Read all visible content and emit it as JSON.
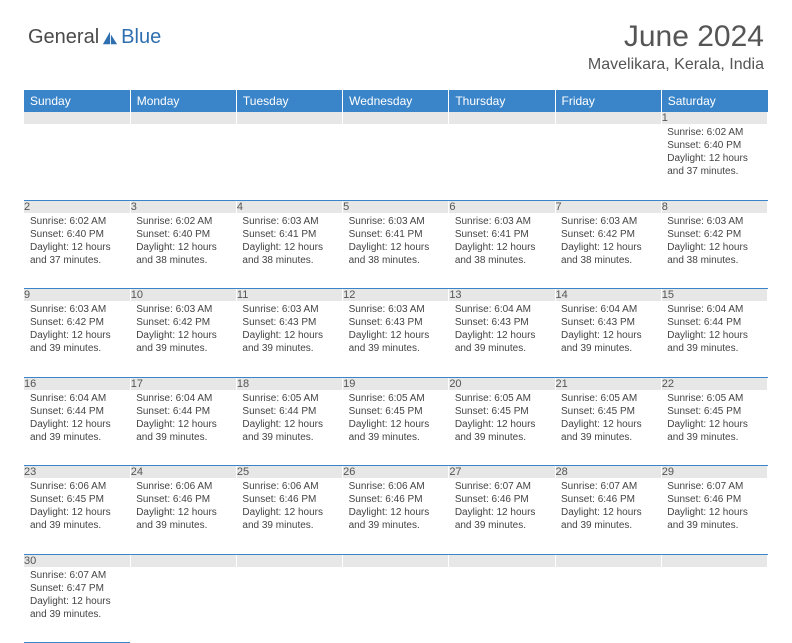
{
  "brand": {
    "part1": "General",
    "part2": "Blue",
    "sail_color": "#2f6fb0",
    "text_color": "#4a4a4a"
  },
  "title": "June 2024",
  "location": "Mavelikara, Kerala, India",
  "colors": {
    "header_bg": "#3a85c9",
    "header_text": "#ffffff",
    "daynum_bg": "#e7e7e7",
    "daynum_text": "#555555",
    "border": "#3a85c9",
    "body_text": "#444444"
  },
  "font": {
    "family": "Arial",
    "th_size": 12,
    "daynum_size": 11,
    "body_size": 10,
    "title_size": 30,
    "location_size": 16
  },
  "day_names": [
    "Sunday",
    "Monday",
    "Tuesday",
    "Wednesday",
    "Thursday",
    "Friday",
    "Saturday"
  ],
  "weeks": [
    [
      null,
      null,
      null,
      null,
      null,
      null,
      {
        "n": "1",
        "sunrise": "6:02 AM",
        "sunset": "6:40 PM",
        "daylight": "12 hours and 37 minutes."
      }
    ],
    [
      {
        "n": "2",
        "sunrise": "6:02 AM",
        "sunset": "6:40 PM",
        "daylight": "12 hours and 37 minutes."
      },
      {
        "n": "3",
        "sunrise": "6:02 AM",
        "sunset": "6:40 PM",
        "daylight": "12 hours and 38 minutes."
      },
      {
        "n": "4",
        "sunrise": "6:03 AM",
        "sunset": "6:41 PM",
        "daylight": "12 hours and 38 minutes."
      },
      {
        "n": "5",
        "sunrise": "6:03 AM",
        "sunset": "6:41 PM",
        "daylight": "12 hours and 38 minutes."
      },
      {
        "n": "6",
        "sunrise": "6:03 AM",
        "sunset": "6:41 PM",
        "daylight": "12 hours and 38 minutes."
      },
      {
        "n": "7",
        "sunrise": "6:03 AM",
        "sunset": "6:42 PM",
        "daylight": "12 hours and 38 minutes."
      },
      {
        "n": "8",
        "sunrise": "6:03 AM",
        "sunset": "6:42 PM",
        "daylight": "12 hours and 38 minutes."
      }
    ],
    [
      {
        "n": "9",
        "sunrise": "6:03 AM",
        "sunset": "6:42 PM",
        "daylight": "12 hours and 39 minutes."
      },
      {
        "n": "10",
        "sunrise": "6:03 AM",
        "sunset": "6:42 PM",
        "daylight": "12 hours and 39 minutes."
      },
      {
        "n": "11",
        "sunrise": "6:03 AM",
        "sunset": "6:43 PM",
        "daylight": "12 hours and 39 minutes."
      },
      {
        "n": "12",
        "sunrise": "6:03 AM",
        "sunset": "6:43 PM",
        "daylight": "12 hours and 39 minutes."
      },
      {
        "n": "13",
        "sunrise": "6:04 AM",
        "sunset": "6:43 PM",
        "daylight": "12 hours and 39 minutes."
      },
      {
        "n": "14",
        "sunrise": "6:04 AM",
        "sunset": "6:43 PM",
        "daylight": "12 hours and 39 minutes."
      },
      {
        "n": "15",
        "sunrise": "6:04 AM",
        "sunset": "6:44 PM",
        "daylight": "12 hours and 39 minutes."
      }
    ],
    [
      {
        "n": "16",
        "sunrise": "6:04 AM",
        "sunset": "6:44 PM",
        "daylight": "12 hours and 39 minutes."
      },
      {
        "n": "17",
        "sunrise": "6:04 AM",
        "sunset": "6:44 PM",
        "daylight": "12 hours and 39 minutes."
      },
      {
        "n": "18",
        "sunrise": "6:05 AM",
        "sunset": "6:44 PM",
        "daylight": "12 hours and 39 minutes."
      },
      {
        "n": "19",
        "sunrise": "6:05 AM",
        "sunset": "6:45 PM",
        "daylight": "12 hours and 39 minutes."
      },
      {
        "n": "20",
        "sunrise": "6:05 AM",
        "sunset": "6:45 PM",
        "daylight": "12 hours and 39 minutes."
      },
      {
        "n": "21",
        "sunrise": "6:05 AM",
        "sunset": "6:45 PM",
        "daylight": "12 hours and 39 minutes."
      },
      {
        "n": "22",
        "sunrise": "6:05 AM",
        "sunset": "6:45 PM",
        "daylight": "12 hours and 39 minutes."
      }
    ],
    [
      {
        "n": "23",
        "sunrise": "6:06 AM",
        "sunset": "6:45 PM",
        "daylight": "12 hours and 39 minutes."
      },
      {
        "n": "24",
        "sunrise": "6:06 AM",
        "sunset": "6:46 PM",
        "daylight": "12 hours and 39 minutes."
      },
      {
        "n": "25",
        "sunrise": "6:06 AM",
        "sunset": "6:46 PM",
        "daylight": "12 hours and 39 minutes."
      },
      {
        "n": "26",
        "sunrise": "6:06 AM",
        "sunset": "6:46 PM",
        "daylight": "12 hours and 39 minutes."
      },
      {
        "n": "27",
        "sunrise": "6:07 AM",
        "sunset": "6:46 PM",
        "daylight": "12 hours and 39 minutes."
      },
      {
        "n": "28",
        "sunrise": "6:07 AM",
        "sunset": "6:46 PM",
        "daylight": "12 hours and 39 minutes."
      },
      {
        "n": "29",
        "sunrise": "6:07 AM",
        "sunset": "6:46 PM",
        "daylight": "12 hours and 39 minutes."
      }
    ],
    [
      {
        "n": "30",
        "sunrise": "6:07 AM",
        "sunset": "6:47 PM",
        "daylight": "12 hours and 39 minutes."
      },
      null,
      null,
      null,
      null,
      null,
      null
    ]
  ],
  "labels": {
    "sunrise": "Sunrise:",
    "sunset": "Sunset:",
    "daylight": "Daylight:"
  }
}
